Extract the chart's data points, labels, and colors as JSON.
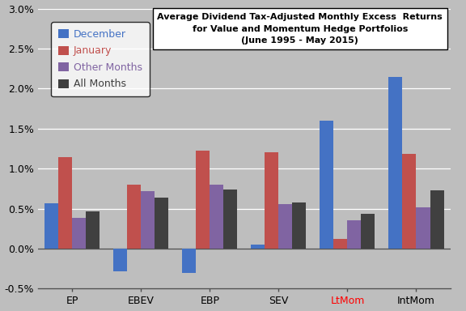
{
  "categories": [
    "EP",
    "EBEV",
    "EBP",
    "SEV",
    "LtMom",
    "IntMom"
  ],
  "series": {
    "December": [
      0.0057,
      -0.0028,
      -0.003,
      0.0005,
      0.016,
      0.0215
    ],
    "January": [
      0.0114,
      0.008,
      0.0122,
      0.012,
      0.0012,
      0.0118
    ],
    "Other Months": [
      0.0038,
      0.0072,
      0.008,
      0.0056,
      0.0035,
      0.0052
    ],
    "All Months": [
      0.0047,
      0.0064,
      0.0074,
      0.0058,
      0.0044,
      0.0073
    ]
  },
  "colors": {
    "December": "#4472C4",
    "January": "#C0504D",
    "Other Months": "#8064A2",
    "All Months": "#404040"
  },
  "ylim": [
    -0.005,
    0.03
  ],
  "ytick_vals": [
    -0.005,
    0.0,
    0.005,
    0.01,
    0.015,
    0.02,
    0.025,
    0.03
  ],
  "ytick_labels": [
    "-0.5%",
    "0.0%",
    "0.5%",
    "1.0%",
    "1.5%",
    "2.0%",
    "2.5%",
    "3.0%"
  ],
  "background_color": "#BEBEBE",
  "legend_labels": [
    "December",
    "January",
    "Other Months",
    "All Months"
  ],
  "bar_width": 0.2,
  "legend_text_colors": {
    "December": "#4472C4",
    "January": "#C0504D",
    "Other Months": "#8064A2",
    "All Months": "#404040"
  },
  "ltmom_label_color": "red"
}
